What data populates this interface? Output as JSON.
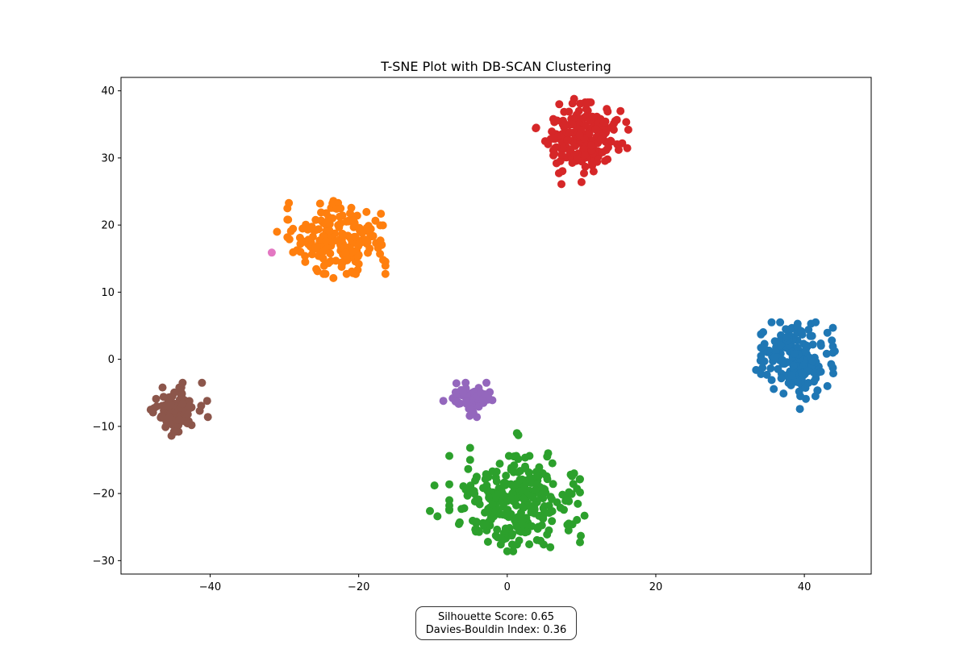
{
  "chart_data": {
    "type": "scatter",
    "title": "T-SNE Plot with DB-SCAN Clustering",
    "xlabel": "",
    "ylabel": "",
    "xlim": [
      -52,
      49
    ],
    "ylim": [
      -32,
      42
    ],
    "xticks": [
      -40,
      -20,
      0,
      20,
      40
    ],
    "yticks": [
      -30,
      -20,
      -10,
      0,
      10,
      20,
      30,
      40
    ],
    "xtick_labels": [
      "−40",
      "−20",
      "0",
      "20",
      "40"
    ],
    "ytick_labels": [
      "−30",
      "−20",
      "−10",
      "0",
      "10",
      "20",
      "30",
      "40"
    ],
    "grid": false,
    "clusters": [
      {
        "cluster": 0,
        "color": "#1f77b4",
        "center": [
          39.0,
          0.0
        ],
        "spread": [
          2.2,
          2.5
        ],
        "count": 190,
        "points": [
          [
            40.9,
            5.3
          ],
          [
            39.1,
            5.3
          ],
          [
            37.5,
            4.5
          ],
          [
            43.7,
            2.8
          ],
          [
            44.1,
            1.2
          ],
          [
            36.2,
            1.8
          ],
          [
            33.5,
            -1.6
          ],
          [
            34.1,
            -0.2
          ],
          [
            35.6,
            -3.1
          ],
          [
            37.2,
            -5.1
          ],
          [
            39.4,
            -7.4
          ],
          [
            40.2,
            -5.9
          ],
          [
            41.5,
            -5.5
          ],
          [
            43.1,
            -4.0
          ],
          [
            43.9,
            -2.1
          ]
        ]
      },
      {
        "cluster": 1,
        "color": "#ff7f0e",
        "center": [
          -23.0,
          18.0
        ],
        "spread": [
          3.0,
          2.4
        ],
        "count": 190,
        "points": [
          [
            -31.0,
            19.0
          ],
          [
            -29.5,
            20.8
          ],
          [
            -25.2,
            23.2
          ],
          [
            -23.4,
            23.6
          ],
          [
            -20.2,
            21.4
          ],
          [
            -18.3,
            18.3
          ],
          [
            -16.7,
            14.8
          ],
          [
            -23.4,
            12.1
          ],
          [
            -27.2,
            14.5
          ],
          [
            -26.2,
            16.5
          ],
          [
            -20.4,
            12.7
          ],
          [
            -18.8,
            19.1
          ]
        ]
      },
      {
        "cluster": 2,
        "color": "#2ca02c",
        "center": [
          1.0,
          -21.0
        ],
        "spread": [
          4.0,
          3.0
        ],
        "count": 300,
        "points": [
          [
            1.3,
            -11.0
          ],
          [
            1.5,
            -11.3
          ],
          [
            -5.0,
            -13.2
          ],
          [
            -9.8,
            -18.8
          ],
          [
            -10.4,
            -22.6
          ],
          [
            -9.4,
            -23.4
          ],
          [
            -2.6,
            -27.2
          ],
          [
            0.0,
            -28.6
          ],
          [
            0.8,
            -28.6
          ],
          [
            5.8,
            -28.0
          ],
          [
            9.9,
            -26.3
          ],
          [
            10.4,
            -23.3
          ],
          [
            9.0,
            -17.0
          ],
          [
            5.5,
            -14.0
          ],
          [
            -6.4,
            -24.3
          ]
        ]
      },
      {
        "cluster": 3,
        "color": "#d62728",
        "center": [
          10.0,
          33.0
        ],
        "spread": [
          2.8,
          2.4
        ],
        "count": 200,
        "points": [
          [
            9.0,
            38.8
          ],
          [
            7.0,
            38.0
          ],
          [
            13.4,
            37.3
          ],
          [
            16.3,
            34.2
          ],
          [
            15.0,
            31.2
          ],
          [
            13.5,
            29.8
          ],
          [
            10.0,
            26.4
          ],
          [
            7.3,
            26.1
          ],
          [
            5.1,
            32.5
          ],
          [
            6.2,
            35.8
          ],
          [
            11.4,
            29.4
          ],
          [
            12.4,
            35.7
          ]
        ]
      },
      {
        "cluster": 4,
        "color": "#9467bd",
        "center": [
          -5.0,
          -6.0
        ],
        "spread": [
          1.2,
          1.1
        ],
        "count": 55,
        "points": [
          [
            -8.6,
            -6.2
          ],
          [
            -4.1,
            -8.6
          ],
          [
            -2.8,
            -3.5
          ],
          [
            -2.0,
            -6.1
          ],
          [
            -6.2,
            -4.6
          ],
          [
            -5.6,
            -3.5
          ]
        ]
      },
      {
        "cluster": 5,
        "color": "#8c564b",
        "center": [
          -44.5,
          -7.5
        ],
        "spread": [
          1.5,
          1.5
        ],
        "count": 90,
        "points": [
          [
            -48.0,
            -7.5
          ],
          [
            -45.2,
            -11.4
          ],
          [
            -43.7,
            -3.5
          ],
          [
            -41.1,
            -3.5
          ],
          [
            -40.4,
            -6.2
          ],
          [
            -40.3,
            -8.6
          ],
          [
            -46.0,
            -10.1
          ],
          [
            -42.5,
            -9.8
          ]
        ]
      },
      {
        "cluster": 6,
        "color": "#e377c2",
        "center": [
          -31.7,
          15.9
        ],
        "spread": [
          0,
          0
        ],
        "count": 1,
        "points": [
          [
            -31.7,
            15.9
          ]
        ]
      }
    ]
  },
  "metrics": {
    "silhouette": "Silhouette Score: 0.65",
    "davies_bouldin": "Davies-Bouldin Index: 0.36"
  }
}
